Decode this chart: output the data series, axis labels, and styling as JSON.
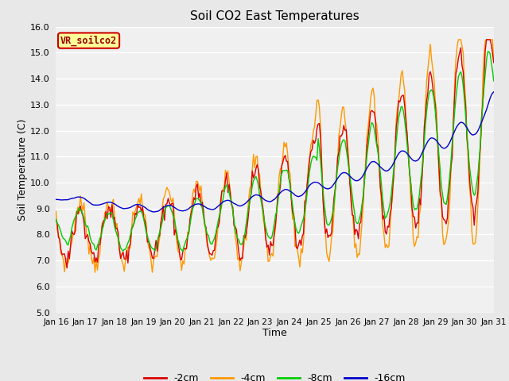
{
  "title": "Soil CO2 East Temperatures",
  "xlabel": "Time",
  "ylabel": "Soil Temperature (C)",
  "ylim": [
    5.0,
    16.0
  ],
  "yticks": [
    5.0,
    6.0,
    7.0,
    8.0,
    9.0,
    10.0,
    11.0,
    12.0,
    13.0,
    14.0,
    15.0,
    16.0
  ],
  "xtick_labels": [
    "Jan 16",
    "Jan 17",
    "Jan 18",
    "Jan 19",
    "Jan 20",
    "Jan 21",
    "Jan 22",
    "Jan 23",
    "Jan 24",
    "Jan 25",
    "Jan 26",
    "Jan 27",
    "Jan 28",
    "Jan 29",
    "Jan 30",
    "Jan 31"
  ],
  "colors": {
    "-2cm": "#dd0000",
    "-4cm": "#ff9900",
    "-8cm": "#00cc00",
    "-16cm": "#0000cc"
  },
  "legend_label": "VR_soilco2",
  "legend_box_color": "#ffff99",
  "legend_box_edge": "#cc0000",
  "bg_color": "#e8e8e8",
  "plot_bg_color": "#f0f0f0",
  "line_width": 1.0
}
